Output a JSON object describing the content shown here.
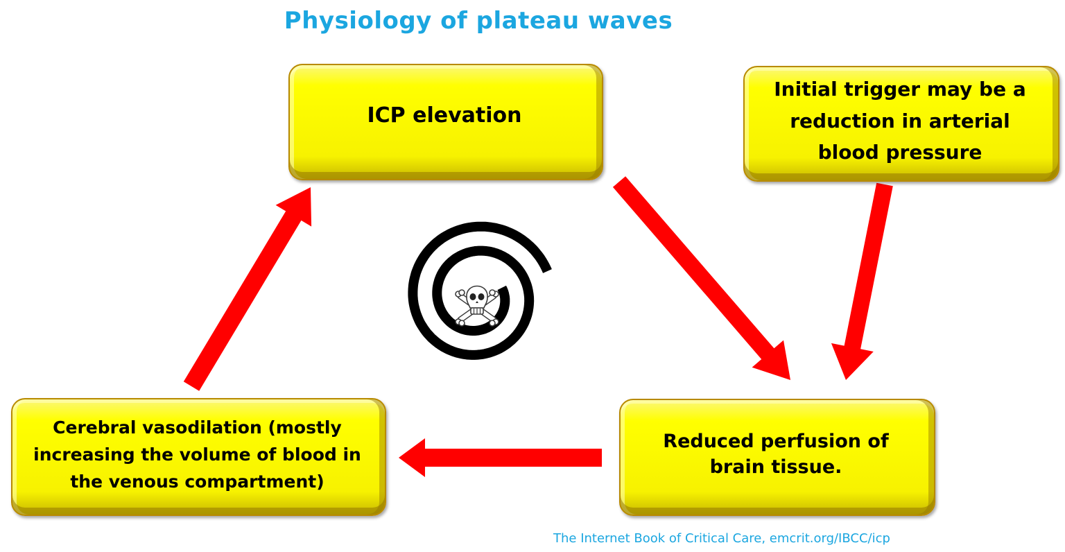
{
  "title": "Physiology of plateau waves",
  "boxes": {
    "icp": "ICP elevation",
    "trigger": "Initial trigger may be a reduction in arterial blood pressure",
    "perfusion": "Reduced perfusion of brain tissue.",
    "vasodilation": "Cerebral vasodilation (mostly increasing the volume of blood in the venous compartment)"
  },
  "credit": "The Internet Book of Critical Care,  emcrit.org/IBCC/icp",
  "colors": {
    "title": "#1ba6e0",
    "box_fill": "#ffff00",
    "arrow": "#ff0000",
    "spiral": "#000000"
  },
  "icons": {
    "center": "skull-and-crossbones-icon",
    "spiral": "spiral-graphic"
  }
}
